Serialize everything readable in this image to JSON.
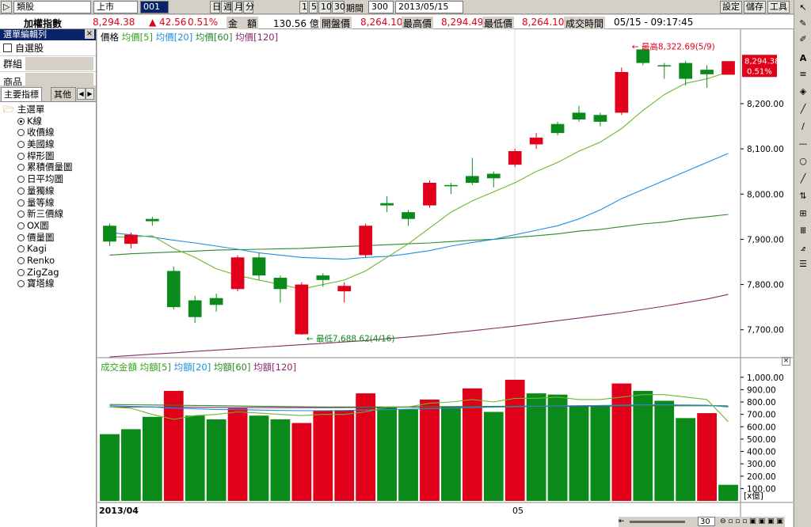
{
  "toolbar": {
    "category": "類股",
    "market": "上市",
    "code": "001",
    "periods": [
      "日",
      "週",
      "月",
      "分"
    ],
    "minutes": [
      "1",
      "5",
      "10",
      "30"
    ],
    "period_label": "期間",
    "period_value": "300",
    "date": "2013/05/15",
    "settings": "設定",
    "save": "儲存",
    "tools": "工具"
  },
  "quote": {
    "name": "加權指數",
    "price": "8,294.38",
    "change": "▲ 42.56",
    "change_pct": "0.51%",
    "amount_label": "金　額",
    "amount": "130.56 億",
    "open_label": "開盤價",
    "open": "8,264.10",
    "high_label": "最高價",
    "high": "8,294.49",
    "low_label": "最低價",
    "low": "8,264.10",
    "time_label": "成交時間",
    "time": "05/15 - 09:17:45"
  },
  "sidebar": {
    "title": "選單編輯列",
    "watchlist": "自選股",
    "group": "群組",
    "product": "商品",
    "tab_main": "主要指標",
    "tab_other": "其他",
    "root": "主選單",
    "items": [
      "K線",
      "收價線",
      "美國線",
      "桿形圖",
      "累積價量圖",
      "日平均圖",
      "量獨線",
      "量等線",
      "新三價線",
      "OX圖",
      "價量圖",
      "Kagi",
      "Renko",
      "ZigZag",
      "寶塔線"
    ]
  },
  "price_panel": {
    "legend": [
      "價格",
      "均價[5]",
      "均價[20]",
      "均價[60]",
      "均價[120]"
    ],
    "legend_colors": [
      "#000000",
      "#3aa01a",
      "#1f8fde",
      "#2a8a2a",
      "#8a2a6a"
    ],
    "high_note": "← 最高8,322.69(5/9)",
    "low_note": "← 最低7,688.62(4/16)",
    "last_price": "8,294.38",
    "last_pct": "0.51%",
    "y_ticks": [
      "8,200.00",
      "8,100.00",
      "8,000.00",
      "7,900.00",
      "7,800.00",
      "7,700.00"
    ]
  },
  "volume_panel": {
    "legend": [
      "成交金額",
      "均額[5]",
      "均額[20]",
      "均額[60]",
      "均額[120]"
    ],
    "legend_colors": [
      "#3aa01a",
      "#3aa01a",
      "#1f8fde",
      "#2a8a2a",
      "#8a2a6a"
    ],
    "y_ticks": [
      "1,000.00",
      "900.00",
      "800.00",
      "700.00",
      "600.00",
      "500.00",
      "400.00",
      "300.00",
      "200.00",
      "100.00"
    ],
    "unit": "[x億]"
  },
  "xaxis": {
    "start": "2013/04",
    "mid": "05"
  },
  "zoom": {
    "value": "30"
  },
  "chart_data": {
    "type": "candlestick",
    "ylim": [
      7640,
      8340
    ],
    "candles": [
      {
        "o": 7930,
        "c": 7895,
        "h": 7935,
        "l": 7885
      },
      {
        "o": 7890,
        "c": 7910,
        "h": 7915,
        "l": 7880
      },
      {
        "o": 7945,
        "c": 7940,
        "h": 7950,
        "l": 7930
      },
      {
        "o": 7830,
        "c": 7750,
        "h": 7840,
        "l": 7745
      },
      {
        "o": 7765,
        "c": 7728,
        "h": 7775,
        "l": 7715
      },
      {
        "o": 7770,
        "c": 7755,
        "h": 7780,
        "l": 7740
      },
      {
        "o": 7790,
        "c": 7860,
        "h": 7865,
        "l": 7785
      },
      {
        "o": 7860,
        "c": 7820,
        "h": 7870,
        "l": 7810
      },
      {
        "o": 7815,
        "c": 7790,
        "h": 7820,
        "l": 7760
      },
      {
        "o": 7690,
        "c": 7800,
        "h": 7805,
        "l": 7689
      },
      {
        "o": 7820,
        "c": 7810,
        "h": 7825,
        "l": 7795
      },
      {
        "o": 7785,
        "c": 7797,
        "h": 7805,
        "l": 7760
      },
      {
        "o": 7865,
        "c": 7930,
        "h": 7935,
        "l": 7860
      },
      {
        "o": 7980,
        "c": 7975,
        "h": 7995,
        "l": 7960
      },
      {
        "o": 7960,
        "c": 7945,
        "h": 7965,
        "l": 7930
      },
      {
        "o": 7975,
        "c": 8025,
        "h": 8030,
        "l": 7970
      },
      {
        "o": 8020,
        "c": 8018,
        "h": 8025,
        "l": 8000
      },
      {
        "o": 8040,
        "c": 8025,
        "h": 8080,
        "l": 8020
      },
      {
        "o": 8045,
        "c": 8035,
        "h": 8050,
        "l": 8015
      },
      {
        "o": 8065,
        "c": 8095,
        "h": 8100,
        "l": 8060
      },
      {
        "o": 8110,
        "c": 8125,
        "h": 8135,
        "l": 8100
      },
      {
        "o": 8155,
        "c": 8135,
        "h": 8160,
        "l": 8130
      },
      {
        "o": 8180,
        "c": 8165,
        "h": 8195,
        "l": 8160
      },
      {
        "o": 8175,
        "c": 8160,
        "h": 8180,
        "l": 8150
      },
      {
        "o": 8180,
        "c": 8270,
        "h": 8280,
        "l": 8175
      },
      {
        "o": 8320,
        "c": 8290,
        "h": 8323,
        "l": 8285
      },
      {
        "o": 8285,
        "c": 8284,
        "h": 8290,
        "l": 8255
      },
      {
        "o": 8290,
        "c": 8255,
        "h": 8295,
        "l": 8240
      },
      {
        "o": 8275,
        "c": 8265,
        "h": 8285,
        "l": 8235
      },
      {
        "o": 8264,
        "c": 8294,
        "h": 8294,
        "l": 8264
      }
    ],
    "ma5": [
      7905,
      7905,
      7908,
      7880,
      7860,
      7835,
      7820,
      7810,
      7800,
      7790,
      7800,
      7810,
      7830,
      7860,
      7890,
      7925,
      7960,
      7985,
      8005,
      8025,
      8050,
      8070,
      8095,
      8115,
      8145,
      8185,
      8220,
      8245,
      8255,
      8270
    ],
    "ma20": [
      7915,
      7910,
      7905,
      7898,
      7892,
      7885,
      7878,
      7870,
      7865,
      7860,
      7858,
      7856,
      7860,
      7862,
      7868,
      7875,
      7885,
      7893,
      7900,
      7910,
      7920,
      7930,
      7945,
      7965,
      7990,
      8010,
      8030,
      8050,
      8070,
      8090
    ],
    "ma60": [
      7865,
      7868,
      7870,
      7872,
      7874,
      7876,
      7877,
      7878,
      7879,
      7880,
      7882,
      7884,
      7886,
      7888,
      7890,
      7892,
      7895,
      7898,
      7900,
      7904,
      7908,
      7912,
      7918,
      7922,
      7928,
      7934,
      7938,
      7945,
      7950,
      7955
    ],
    "ma120": [
      7640,
      7643,
      7646,
      7649,
      7652,
      7655,
      7658,
      7661,
      7664,
      7667,
      7670,
      7673,
      7676,
      7680,
      7684,
      7688,
      7693,
      7698,
      7703,
      7708,
      7714,
      7720,
      7726,
      7732,
      7738,
      7745,
      7752,
      7760,
      7768,
      7778
    ],
    "volume": [
      540,
      580,
      680,
      890,
      690,
      660,
      750,
      690,
      660,
      630,
      730,
      730,
      870,
      760,
      740,
      820,
      760,
      910,
      720,
      980,
      870,
      860,
      770,
      770,
      950,
      890,
      810,
      670,
      710,
      130
    ],
    "volume_up": [
      false,
      false,
      false,
      true,
      false,
      false,
      true,
      false,
      false,
      true,
      true,
      true,
      true,
      false,
      false,
      true,
      false,
      true,
      false,
      true,
      false,
      false,
      false,
      false,
      true,
      false,
      false,
      false,
      true,
      false
    ],
    "vol_ma5": [
      760,
      750,
      700,
      660,
      690,
      700,
      720,
      710,
      700,
      690,
      700,
      700,
      720,
      760,
      760,
      790,
      800,
      820,
      800,
      830,
      830,
      840,
      820,
      820,
      840,
      860,
      860,
      840,
      820,
      640
    ],
    "vol_ma20": [
      770,
      765,
      760,
      750,
      745,
      740,
      738,
      735,
      732,
      730,
      730,
      732,
      735,
      738,
      742,
      746,
      750,
      755,
      758,
      762,
      765,
      768,
      770,
      772,
      775,
      778,
      778,
      776,
      774,
      760
    ],
    "vol_ma60": [
      780,
      778,
      776,
      774,
      772,
      770,
      768,
      766,
      764,
      762,
      760,
      760,
      760,
      760,
      761,
      762,
      763,
      764,
      765,
      766,
      767,
      768,
      769,
      770,
      770,
      770,
      770,
      770,
      770,
      768
    ],
    "vol_ma120": [
      760,
      760,
      760,
      759,
      758,
      757,
      756,
      755,
      754,
      754,
      754,
      755,
      756,
      757,
      758,
      759,
      760,
      761,
      762,
      763,
      764,
      765,
      766,
      767,
      768,
      769,
      770,
      770,
      770,
      769
    ]
  }
}
